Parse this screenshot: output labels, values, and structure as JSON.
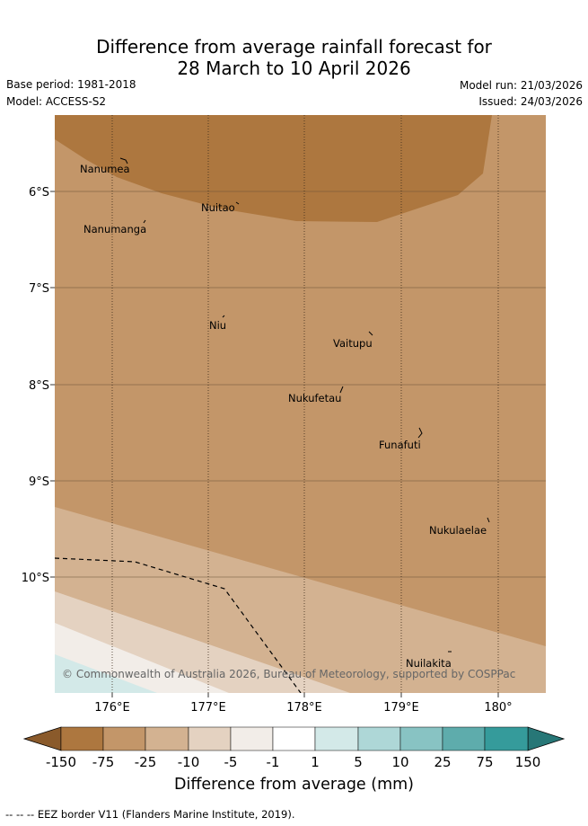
{
  "title": {
    "line1": "Difference from average rainfall forecast for",
    "line2": "28 March to 10 April 2026"
  },
  "meta": {
    "base_period": "Base period: 1981-2018",
    "model": "Model: ACCESS-S2",
    "model_run": "Model run: 21/03/2026",
    "issued": "Issued: 24/03/2026"
  },
  "map": {
    "lat_ticks": [
      "6°S",
      "7°S",
      "8°S",
      "9°S",
      "10°S"
    ],
    "lon_ticks": [
      "176°E",
      "177°E",
      "178°E",
      "179°E",
      "180°"
    ],
    "places": [
      "Nanumea",
      "Nuitao",
      "Nanumanga",
      "Niu",
      "Vaitupu",
      "Nukufetau",
      "Funafuti",
      "Nukulaelae",
      "Nuilakita"
    ],
    "copyright": "© Commonwealth of Australia 2026, Bureau of Meteorology, supported by COSPPac"
  },
  "colorbar": {
    "labels": [
      "-150",
      "-75",
      "-25",
      "-10",
      "-5",
      "-1",
      "1",
      "5",
      "10",
      "25",
      "75",
      "150"
    ],
    "colors": [
      "#8a5a2b",
      "#ad773f",
      "#c39669",
      "#d3b291",
      "#e4d2c1",
      "#f2ede8",
      "#ffffff",
      "#d3e9e8",
      "#aed7d7",
      "#88c3c3",
      "#5eacac",
      "#359b9b",
      "#277777"
    ],
    "title": "Difference from average (mm)"
  },
  "footer": "--  --  -- EEZ border V11 (Flanders Marine Institute, 2019)."
}
